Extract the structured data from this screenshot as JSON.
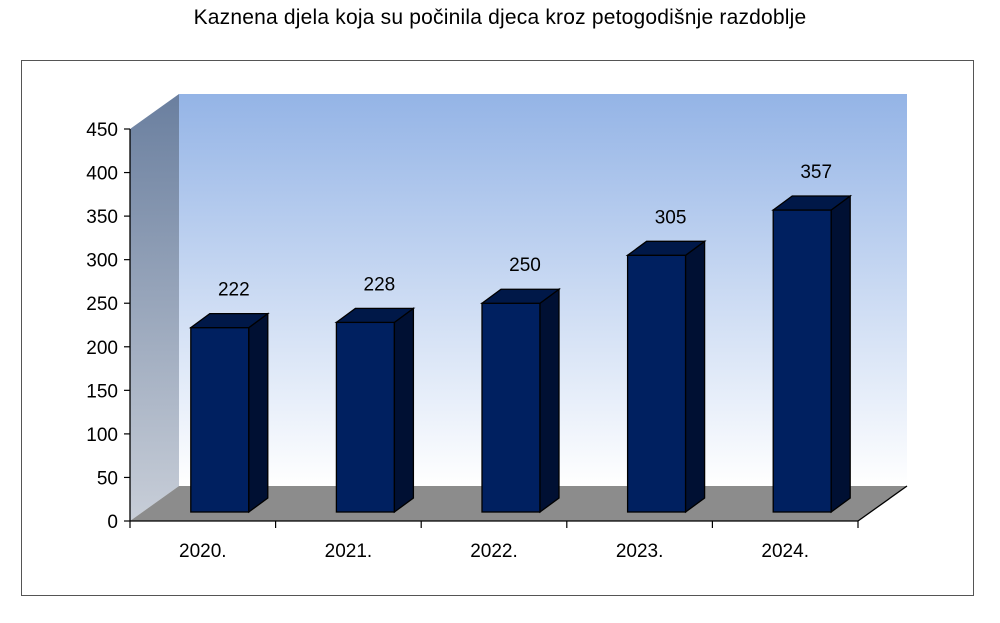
{
  "chart_data": {
    "type": "bar",
    "title": "Kaznena djela koja su počinila djeca kroz petogodišnje razdoblje",
    "categories": [
      "2020.",
      "2021.",
      "2022.",
      "2023.",
      "2024."
    ],
    "values": [
      222,
      228,
      250,
      305,
      357
    ],
    "data_labels": [
      "222",
      "228",
      "250",
      "305",
      "357"
    ],
    "ylim": [
      0,
      450
    ],
    "yticks": [
      "0",
      "50",
      "100",
      "150",
      "200",
      "250",
      "300",
      "350",
      "400",
      "450"
    ],
    "xlabel": "",
    "ylabel": "",
    "style": "3d-column",
    "colors": {
      "bar_front": "#002060",
      "bar_side": "#001033",
      "bar_top": "#001848",
      "bar_outline": "#000000",
      "back_wall_top": "#94b4e6",
      "back_wall_bottom": "#ffffff",
      "side_wall_top": "#6a7f9f",
      "side_wall_bottom": "#c8ced8",
      "floor": "#8c8c8c"
    },
    "legend": "none"
  }
}
